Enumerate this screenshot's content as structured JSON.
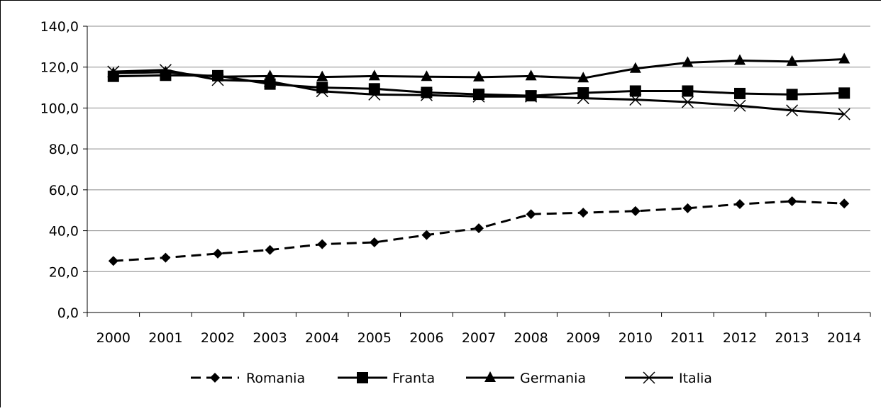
{
  "chart_data": {
    "type": "line",
    "x": [
      "2000",
      "2001",
      "2002",
      "2003",
      "2004",
      "2005",
      "2006",
      "2007",
      "2008",
      "2009",
      "2010",
      "2011",
      "2012",
      "2013",
      "2014"
    ],
    "ylim": [
      0,
      140
    ],
    "yticks": [
      "0,0",
      "20,0",
      "40,0",
      "60,0",
      "80,0",
      "100,0",
      "120,0",
      "140,0"
    ],
    "grid": true,
    "legend_position": "bottom",
    "series": [
      {
        "name": "Romania",
        "marker": "diamond",
        "dash": true,
        "values": [
          25.2,
          26.8,
          28.8,
          30.6,
          33.4,
          34.3,
          37.9,
          41.2,
          48.1,
          48.8,
          49.6,
          51.0,
          53.0,
          54.4,
          53.3
        ]
      },
      {
        "name": "Franta",
        "marker": "square",
        "dash": false,
        "values": [
          115.5,
          116.0,
          115.8,
          111.7,
          110.0,
          109.4,
          107.6,
          106.7,
          106.0,
          107.4,
          108.3,
          108.3,
          107.1,
          106.6,
          107.3
        ]
      },
      {
        "name": "Germania",
        "marker": "triangle",
        "dash": false,
        "values": [
          117.0,
          117.5,
          115.3,
          115.6,
          115.2,
          115.6,
          115.3,
          115.1,
          115.6,
          114.6,
          119.3,
          122.2,
          123.2,
          122.7,
          123.9
        ]
      },
      {
        "name": "Italia",
        "marker": "cross",
        "dash": false,
        "values": [
          117.8,
          118.6,
          113.7,
          113.0,
          108.2,
          106.6,
          106.3,
          105.6,
          105.6,
          104.8,
          104.1,
          102.9,
          101.1,
          98.8,
          97.0
        ]
      }
    ]
  }
}
